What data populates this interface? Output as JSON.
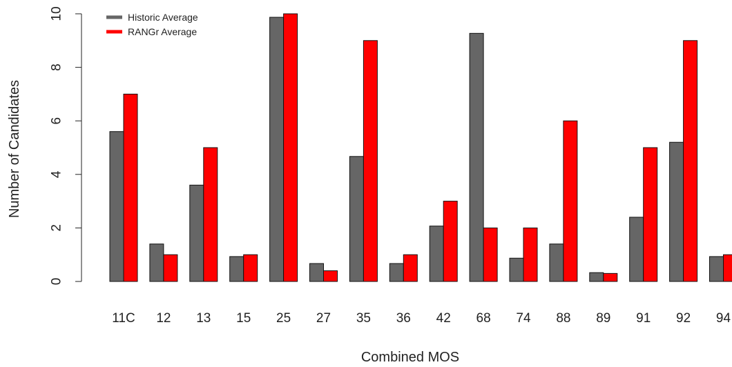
{
  "chart_data": {
    "type": "bar",
    "xlabel": "Combined MOS",
    "ylabel": "Number of Candidates",
    "ylim": [
      0,
      10
    ],
    "yticks": [
      0,
      2,
      4,
      6,
      8,
      10
    ],
    "grid": false,
    "legend_position": "top-left",
    "categories": [
      "11C",
      "12",
      "13",
      "15",
      "25",
      "27",
      "35",
      "36",
      "42",
      "68",
      "74",
      "88",
      "89",
      "91",
      "92",
      "94"
    ],
    "series": [
      {
        "name": "Historic Average",
        "color": "#666666",
        "values": [
          5.6,
          1.4,
          3.6,
          0.93,
          9.87,
          0.67,
          4.67,
          0.67,
          2.07,
          9.27,
          0.87,
          1.4,
          0.33,
          2.4,
          5.2,
          0.93
        ]
      },
      {
        "name": "RANGr Average",
        "color": "#ff0000",
        "values": [
          7,
          1,
          5,
          1,
          10,
          0.4,
          9,
          1,
          3,
          2,
          2,
          6,
          0.3,
          5,
          9,
          1
        ]
      }
    ]
  }
}
